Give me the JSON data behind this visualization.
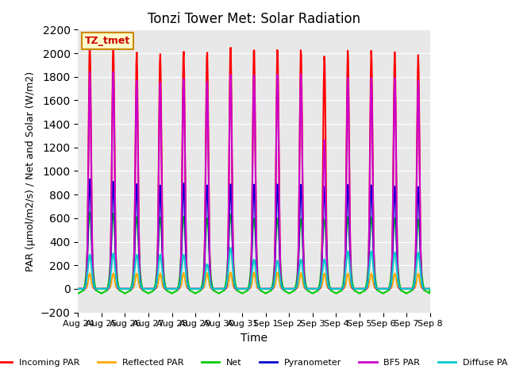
{
  "title": "Tonzi Tower Met: Solar Radiation",
  "xlabel": "Time",
  "ylabel": "PAR (μmol/m2/s) / Net and Solar (W/m2)",
  "ylim": [
    -200,
    2200
  ],
  "yticks": [
    -200,
    0,
    200,
    400,
    600,
    800,
    1000,
    1200,
    1400,
    1600,
    1800,
    2000,
    2200
  ],
  "xtick_labels": [
    "Aug 24",
    "Aug 25",
    "Aug 26",
    "Aug 27",
    "Aug 28",
    "Aug 29",
    "Aug 30",
    "Aug 31",
    "Sep 1",
    "Sep 2",
    "Sep 3",
    "Sep 4",
    "Sep 5",
    "Sep 6",
    "Sep 7",
    "Sep 8"
  ],
  "legend_label": "TZ_tmet",
  "series": [
    {
      "name": "Incoming PAR",
      "color": "#ff0000",
      "lw": 1.5
    },
    {
      "name": "Reflected PAR",
      "color": "#ffaa00",
      "lw": 1.5
    },
    {
      "name": "Net",
      "color": "#00cc00",
      "lw": 1.5
    },
    {
      "name": "Pyranometer",
      "color": "#0000cc",
      "lw": 1.5
    },
    {
      "name": "BF5 PAR",
      "color": "#cc00cc",
      "lw": 1.5
    },
    {
      "name": "Diffuse PAR",
      "color": "#00cccc",
      "lw": 1.5
    }
  ],
  "peaks_incoming": [
    2100,
    2075,
    2010,
    2000,
    2025,
    2025,
    2075,
    2060,
    2055,
    2045,
    1985,
    2030,
    2025,
    2010,
    1985,
    0
  ],
  "peaks_reflected": [
    130,
    130,
    130,
    130,
    135,
    135,
    140,
    140,
    140,
    135,
    130,
    130,
    130,
    130,
    130,
    0
  ],
  "peaks_net": [
    650,
    640,
    610,
    605,
    615,
    600,
    635,
    600,
    600,
    595,
    590,
    610,
    605,
    600,
    590,
    0
  ],
  "peaks_pyranometer": [
    930,
    910,
    890,
    880,
    900,
    885,
    895,
    895,
    895,
    890,
    870,
    885,
    880,
    870,
    865,
    0
  ],
  "peaks_bf5par": [
    1840,
    1840,
    1770,
    1760,
    1790,
    1775,
    1840,
    1840,
    1840,
    1840,
    1270,
    1800,
    1795,
    1790,
    1770,
    0
  ],
  "peaks_diffuse": [
    290,
    300,
    290,
    290,
    290,
    210,
    350,
    250,
    240,
    250,
    250,
    320,
    320,
    310,
    310,
    0
  ],
  "net_trough": -100,
  "background_color": "#e8e8e8",
  "figsize": [
    6.4,
    4.8
  ],
  "dpi": 100
}
